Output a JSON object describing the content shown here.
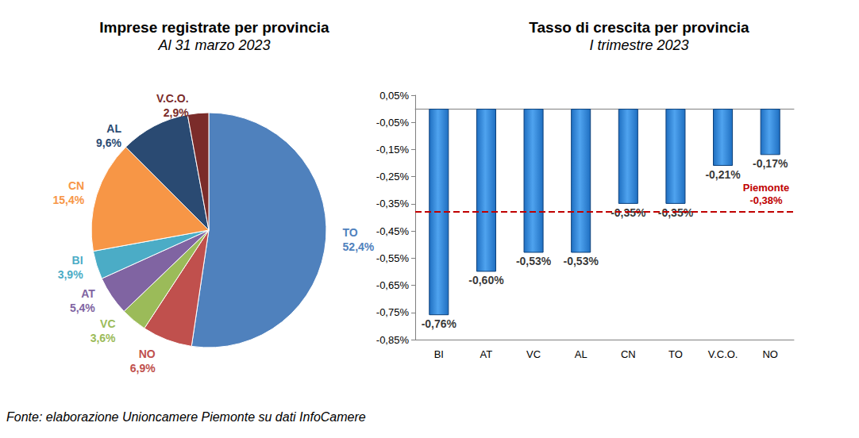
{
  "chart_data": [
    {
      "type": "pie",
      "title": "Imprese registrate per provincia",
      "subtitle": "Al 31 marzo 2023",
      "categories": [
        "TO",
        "NO",
        "VC",
        "AT",
        "BI",
        "CN",
        "AL",
        "V.C.O."
      ],
      "values": [
        52.4,
        6.9,
        3.6,
        5.4,
        3.9,
        15.4,
        9.6,
        2.9
      ],
      "value_labels": [
        "52,4%",
        "6,9%",
        "3,6%",
        "5,4%",
        "3,9%",
        "15,4%",
        "9,6%",
        "2,9%"
      ],
      "colors": [
        "#4f81bd",
        "#c0504d",
        "#9bbb59",
        "#8064a2",
        "#4bacc6",
        "#f79646",
        "#2a4a72",
        "#7b2c2a"
      ],
      "data_labels": true
    },
    {
      "type": "bar",
      "title": "Tasso di crescita per provincia",
      "subtitle": "I trimestre 2023",
      "categories": [
        "BI",
        "AT",
        "VC",
        "AL",
        "CN",
        "TO",
        "V.C.O.",
        "NO"
      ],
      "values": [
        -0.76,
        -0.6,
        -0.53,
        -0.53,
        -0.35,
        -0.35,
        -0.21,
        -0.17
      ],
      "value_labels": [
        "-0,76%",
        "-0,60%",
        "-0,53%",
        "-0,53%",
        "-0,35%",
        "-0,35%",
        "-0,21%",
        "-0,17%"
      ],
      "color": "#1f6fc1",
      "ylim": [
        -0.85,
        0.05
      ],
      "yticks": [
        {
          "value": 0.05,
          "label": "0,05%"
        },
        {
          "value": -0.05,
          "label": "-0,05%"
        },
        {
          "value": -0.15,
          "label": "-0,15%"
        },
        {
          "value": -0.25,
          "label": "-0,25%"
        },
        {
          "value": -0.35,
          "label": "-0,35%"
        },
        {
          "value": -0.45,
          "label": "-0,45%"
        },
        {
          "value": -0.55,
          "label": "-0,55%"
        },
        {
          "value": -0.65,
          "label": "-0,65%"
        },
        {
          "value": -0.75,
          "label": "-0,75%"
        },
        {
          "value": -0.85,
          "label": "-0,85%"
        }
      ],
      "grid": false,
      "data_labels": true,
      "reference_line": {
        "name": "Piemonte",
        "value": -0.38,
        "value_label": "-0,38%",
        "color": "#c00000",
        "line_style": "dashed"
      }
    }
  ],
  "source": "Fonte: elaborazione Unioncamere Piemonte su dati InfoCamere"
}
